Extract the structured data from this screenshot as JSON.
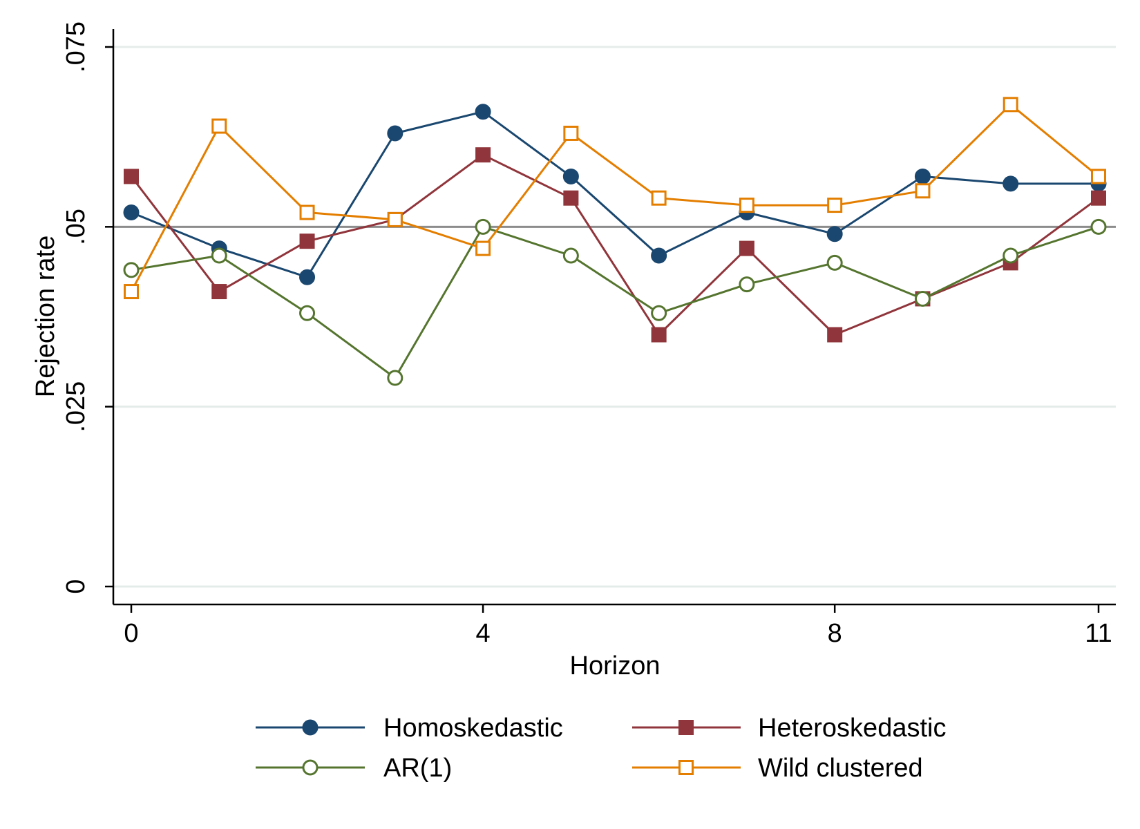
{
  "chart_data": {
    "type": "line",
    "title": "",
    "xlabel": "Horizon",
    "ylabel": "Rejection rate",
    "xlim": [
      0,
      11
    ],
    "ylim": [
      0,
      0.075
    ],
    "xticks": [
      0,
      4,
      8,
      11
    ],
    "xtick_labels": [
      "0",
      "4",
      "8",
      "11"
    ],
    "yticks": [
      0,
      0.025,
      0.05,
      0.075
    ],
    "ytick_labels": [
      "0",
      ".025",
      ".05",
      ".075"
    ],
    "grid": true,
    "reference_line": 0.05,
    "legend_position": "bottom",
    "x": [
      0,
      1,
      2,
      3,
      4,
      5,
      6,
      7,
      8,
      9,
      10,
      11
    ],
    "series": [
      {
        "name": "Homoskedastic",
        "color": "#1a476f",
        "marker": "filled-circle",
        "values": [
          0.052,
          0.047,
          0.043,
          0.063,
          0.066,
          0.057,
          0.046,
          0.052,
          0.049,
          0.057,
          0.056,
          0.056
        ]
      },
      {
        "name": "Heteroskedastic",
        "color": "#90353b",
        "marker": "filled-square",
        "values": [
          0.057,
          0.041,
          0.048,
          0.051,
          0.06,
          0.054,
          0.035,
          0.047,
          0.035,
          0.04,
          0.045,
          0.054
        ]
      },
      {
        "name": "AR(1)",
        "color": "#55752f",
        "marker": "hollow-circle",
        "values": [
          0.044,
          0.046,
          0.038,
          0.029,
          0.05,
          0.046,
          0.038,
          0.042,
          0.045,
          0.04,
          0.046,
          0.05
        ]
      },
      {
        "name": "Wild clustered",
        "color": "#e37e00",
        "marker": "hollow-square",
        "values": [
          0.041,
          0.064,
          0.052,
          0.051,
          0.047,
          0.063,
          0.054,
          0.053,
          0.053,
          0.055,
          0.067,
          0.057
        ]
      }
    ]
  }
}
